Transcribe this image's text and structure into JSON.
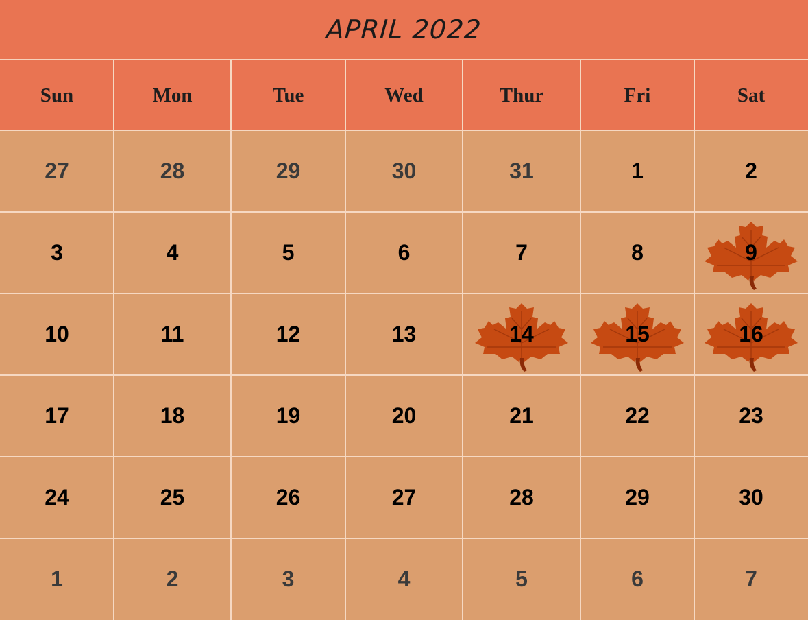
{
  "title": "APRIL 2022",
  "colors": {
    "header_bg": "#e97452",
    "body_bg": "#db9e6e",
    "grid_line": "#f6d8c2",
    "leaf": "#c64a12",
    "leaf_vein": "#8b2a06"
  },
  "weekdays": [
    "Sun",
    "Mon",
    "Tue",
    "Wed",
    "Thur",
    "Fri",
    "Sat"
  ],
  "weeks": [
    [
      "27",
      "28",
      "29",
      "30",
      "31",
      "1",
      "2"
    ],
    [
      "3",
      "4",
      "5",
      "6",
      "7",
      "8",
      "9"
    ],
    [
      "10",
      "11",
      "12",
      "13",
      "14",
      "15",
      "16"
    ],
    [
      "17",
      "18",
      "19",
      "20",
      "21",
      "22",
      "23"
    ],
    [
      "24",
      "25",
      "26",
      "27",
      "28",
      "29",
      "30"
    ],
    [
      "1",
      "2",
      "3",
      "4",
      "5",
      "6",
      "7"
    ]
  ],
  "outside_month": [
    [
      true,
      true,
      true,
      true,
      true,
      false,
      false
    ],
    [
      false,
      false,
      false,
      false,
      false,
      false,
      false
    ],
    [
      false,
      false,
      false,
      false,
      false,
      false,
      false
    ],
    [
      false,
      false,
      false,
      false,
      false,
      false,
      false
    ],
    [
      false,
      false,
      false,
      false,
      false,
      false,
      false
    ],
    [
      true,
      true,
      true,
      true,
      true,
      true,
      true
    ]
  ],
  "leaf_marked_dates": [
    "9",
    "14",
    "15",
    "16"
  ],
  "leaf_icon": "maple-leaf-icon"
}
